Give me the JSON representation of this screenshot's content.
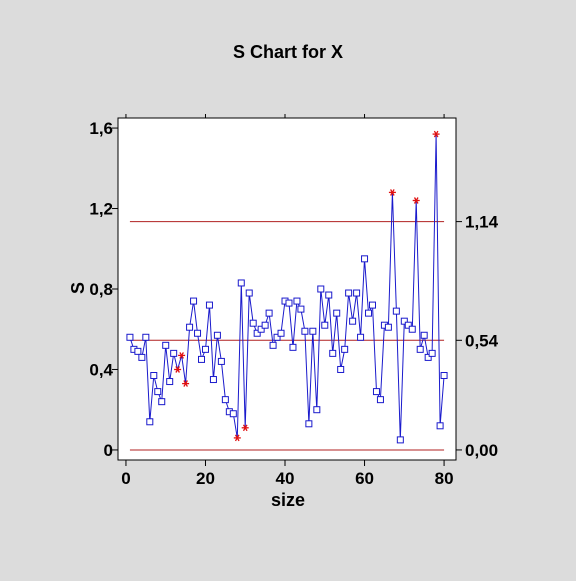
{
  "chart_data": {
    "type": "line",
    "title": "S Chart for X",
    "xlabel": "size",
    "ylabel": "S",
    "xlim": [
      -2,
      83
    ],
    "ylim": [
      -0.05,
      1.65
    ],
    "x_ticks": [
      0,
      20,
      40,
      60,
      80
    ],
    "x_tick_labels": [
      "0",
      "20",
      "40",
      "60",
      "80"
    ],
    "y_ticks": [
      0,
      0.4,
      0.8,
      1.2,
      1.6
    ],
    "y_tick_labels": [
      "0",
      "0,4",
      "0,8",
      "1,2",
      "1,6"
    ],
    "control_limits": {
      "ucl": 1.135,
      "cl": 0.545,
      "lcl": 0.0,
      "ucl_label": "1,14",
      "cl_label": "0,54",
      "lcl_label": "0,00"
    },
    "series": [
      {
        "x": [
          1,
          2,
          3,
          4,
          5,
          6,
          7,
          8,
          9,
          10,
          11,
          12,
          13,
          14,
          15,
          16,
          17,
          18,
          19,
          20,
          21,
          22,
          23,
          24,
          25,
          26,
          27,
          28,
          29,
          30,
          31,
          32,
          33,
          34,
          35,
          36,
          37,
          38,
          39,
          40,
          41,
          42,
          43,
          44,
          45,
          46,
          47,
          48,
          49,
          50,
          51,
          52,
          53,
          54,
          55,
          56,
          57,
          58,
          59,
          60,
          61,
          62,
          63,
          64,
          65,
          66,
          67,
          68,
          69,
          70,
          71,
          72,
          73,
          74,
          75,
          76,
          77,
          78,
          79,
          80
        ],
        "y": [
          0.56,
          0.5,
          0.49,
          0.46,
          0.56,
          0.14,
          0.37,
          0.29,
          0.24,
          0.52,
          0.34,
          0.48,
          0.4,
          0.47,
          0.33,
          0.61,
          0.74,
          0.58,
          0.45,
          0.5,
          0.72,
          0.35,
          0.57,
          0.44,
          0.25,
          0.19,
          0.18,
          0.06,
          0.83,
          0.11,
          0.78,
          0.63,
          0.58,
          0.6,
          0.62,
          0.68,
          0.52,
          0.56,
          0.58,
          0.74,
          0.73,
          0.51,
          0.74,
          0.7,
          0.59,
          0.13,
          0.59,
          0.2,
          0.8,
          0.62,
          0.77,
          0.48,
          0.68,
          0.4,
          0.5,
          0.78,
          0.64,
          0.78,
          0.56,
          0.95,
          0.68,
          0.72,
          0.29,
          0.25,
          0.62,
          0.61,
          1.28,
          0.69,
          0.05,
          0.64,
          0.62,
          0.6,
          1.24,
          0.5,
          0.57,
          0.46,
          0.48,
          1.57,
          0.12,
          0.37
        ],
        "flagged": [
          13,
          14,
          15,
          28,
          30,
          67,
          73,
          78
        ]
      }
    ]
  }
}
